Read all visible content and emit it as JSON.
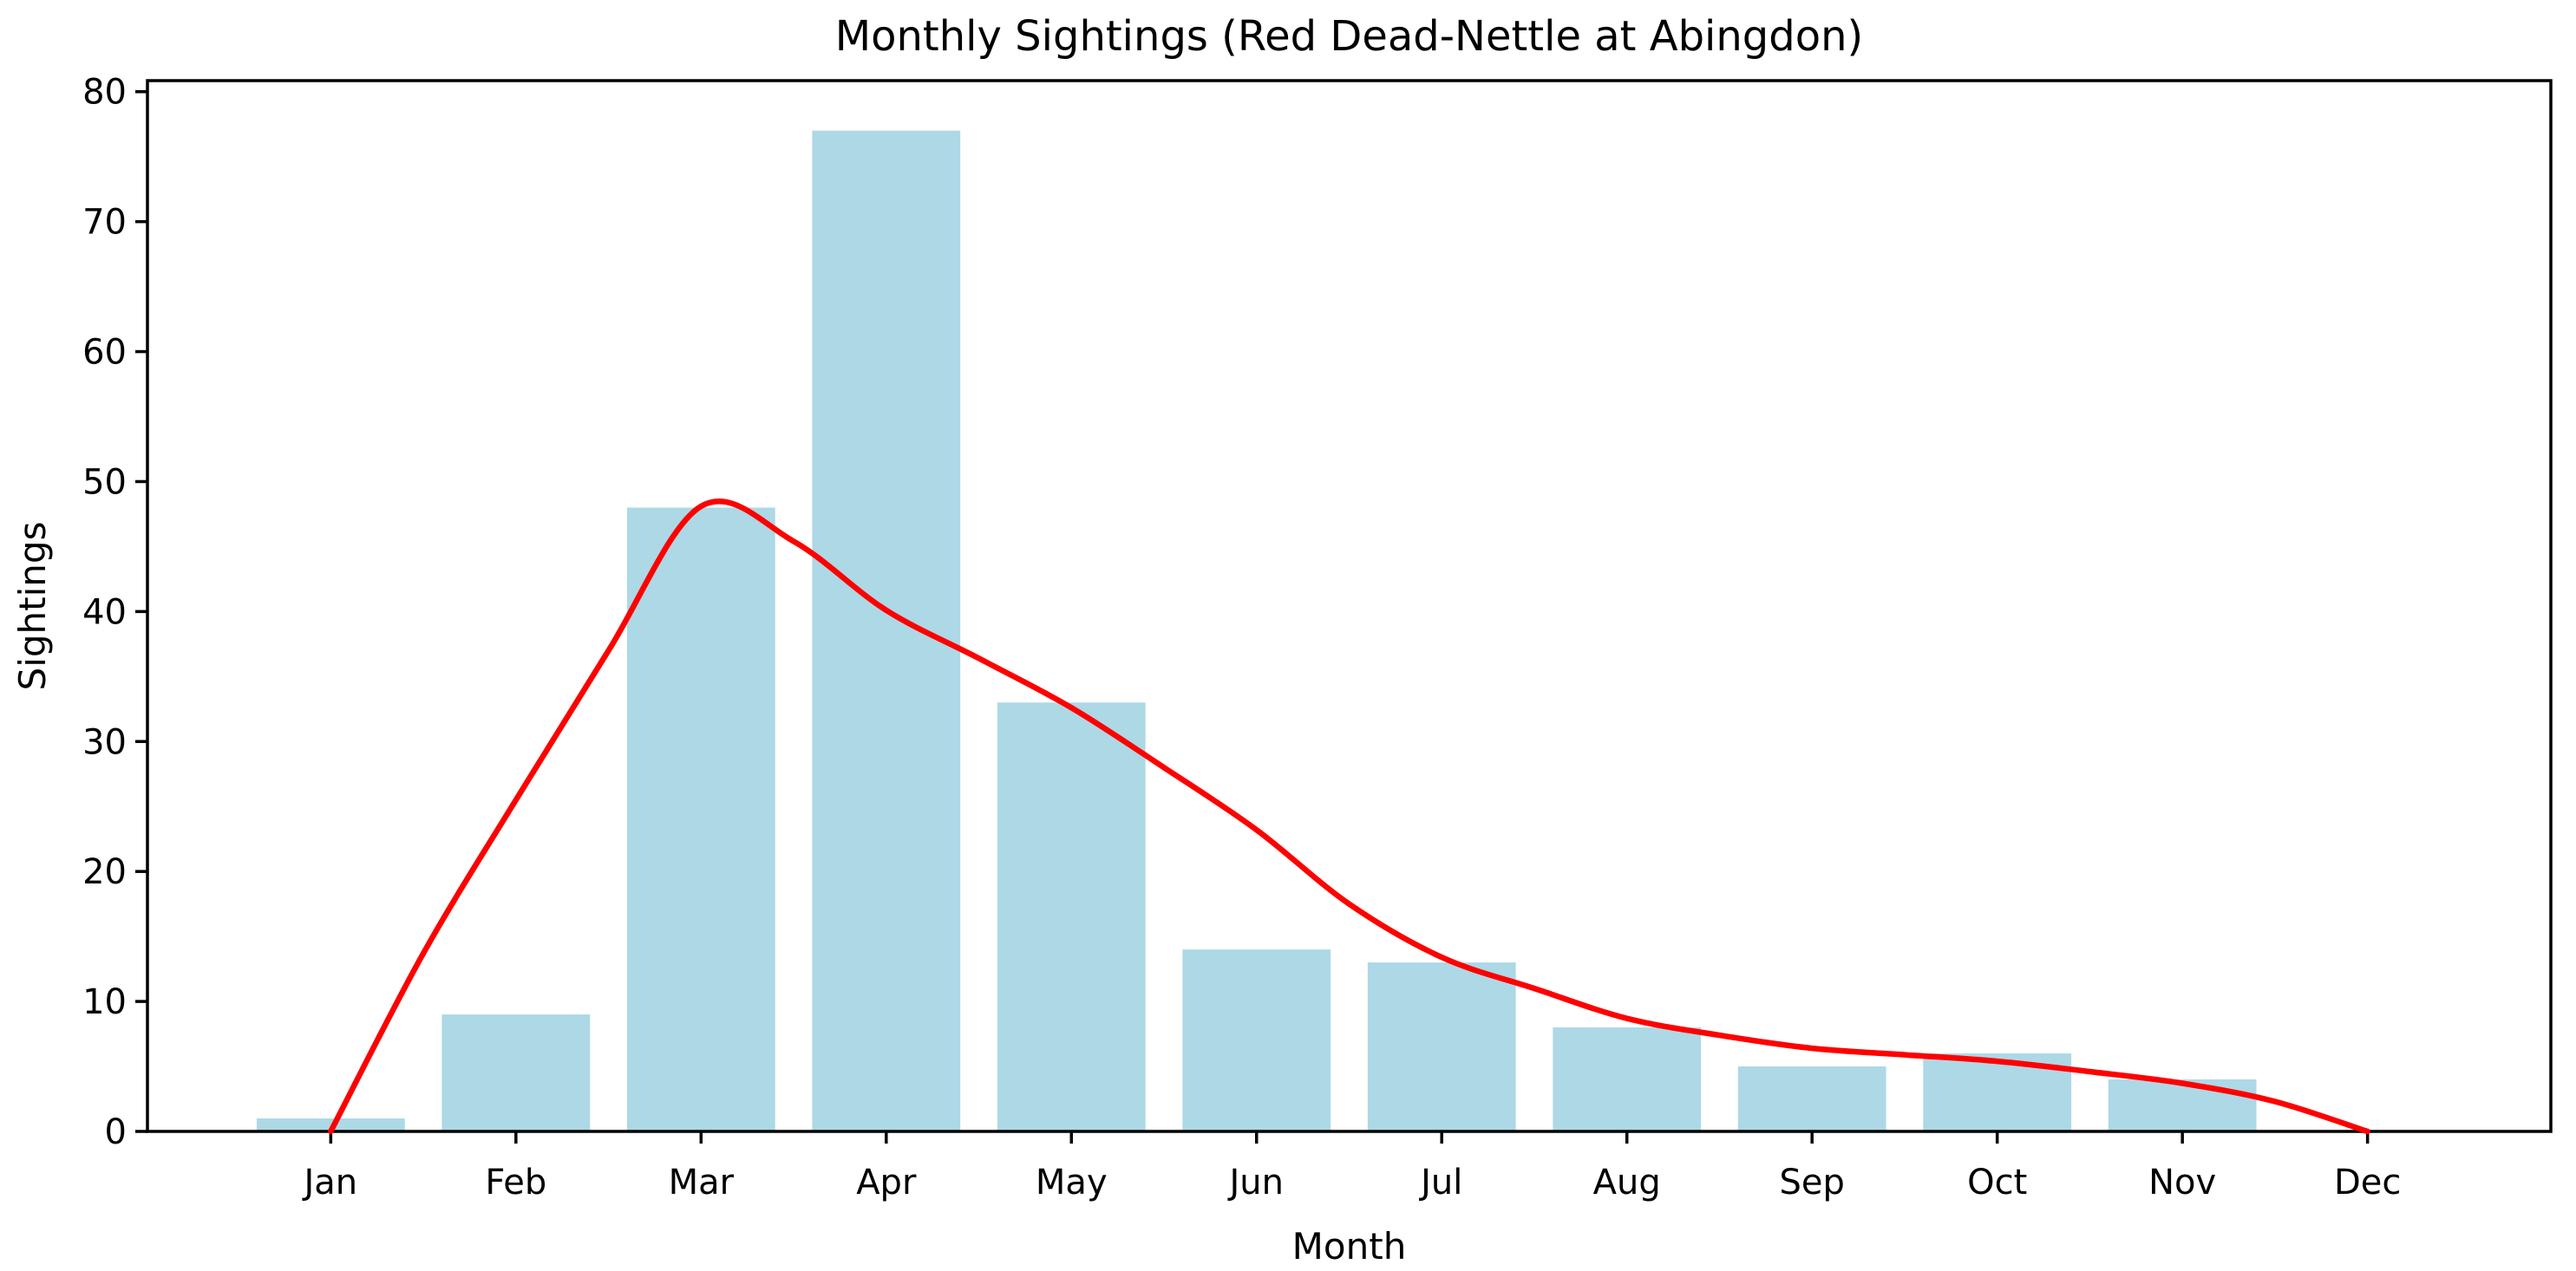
{
  "chart_data": {
    "type": "bar",
    "title": "Monthly Sightings (Red Dead-Nettle at Abingdon)",
    "xlabel": "Month",
    "ylabel": "Sightings",
    "categories": [
      "Jan",
      "Feb",
      "Mar",
      "Apr",
      "May",
      "Jun",
      "Jul",
      "Aug",
      "Sep",
      "Oct",
      "Nov",
      "Dec"
    ],
    "series": [
      {
        "name": "monthly-sightings-bars",
        "type": "bar",
        "values": [
          1,
          9,
          48,
          77,
          33,
          14,
          13,
          8,
          5,
          6,
          4,
          0
        ]
      },
      {
        "name": "smoothed-trend-line",
        "type": "line",
        "values": [
          0,
          25.5,
          48,
          40,
          32.5,
          23,
          13.5,
          8.7,
          6.4,
          5.4,
          3.7,
          0
        ]
      }
    ],
    "line_points": [
      [
        0,
        0
      ],
      [
        0.5,
        13.7
      ],
      [
        1,
        25.5
      ],
      [
        1.5,
        37
      ],
      [
        2,
        48.1
      ],
      [
        2.5,
        45.4
      ],
      [
        3,
        40.1
      ],
      [
        3.5,
        36.4
      ],
      [
        4,
        32.6
      ],
      [
        4.5,
        28
      ],
      [
        5,
        23.2
      ],
      [
        5.5,
        17.5
      ],
      [
        6,
        13.4
      ],
      [
        6.5,
        11
      ],
      [
        7,
        8.7
      ],
      [
        7.5,
        7.4
      ],
      [
        8,
        6.4
      ],
      [
        8.5,
        5.9
      ],
      [
        9,
        5.4
      ],
      [
        9.5,
        4.6
      ],
      [
        10,
        3.7
      ],
      [
        10.5,
        2.3
      ],
      [
        11,
        0
      ]
    ],
    "yticks": [
      0,
      10,
      20,
      30,
      40,
      50,
      60,
      70,
      80
    ],
    "ylim": [
      0,
      80.85
    ],
    "xlim": [
      -0.99,
      11.99
    ],
    "bar_width_months": 0.8,
    "grid": false,
    "legend": null,
    "colors": {
      "bar": "#ADD8E6",
      "line": "#FF0000",
      "text": "#000000",
      "spine": "#000000",
      "background": "#FFFFFF"
    }
  }
}
